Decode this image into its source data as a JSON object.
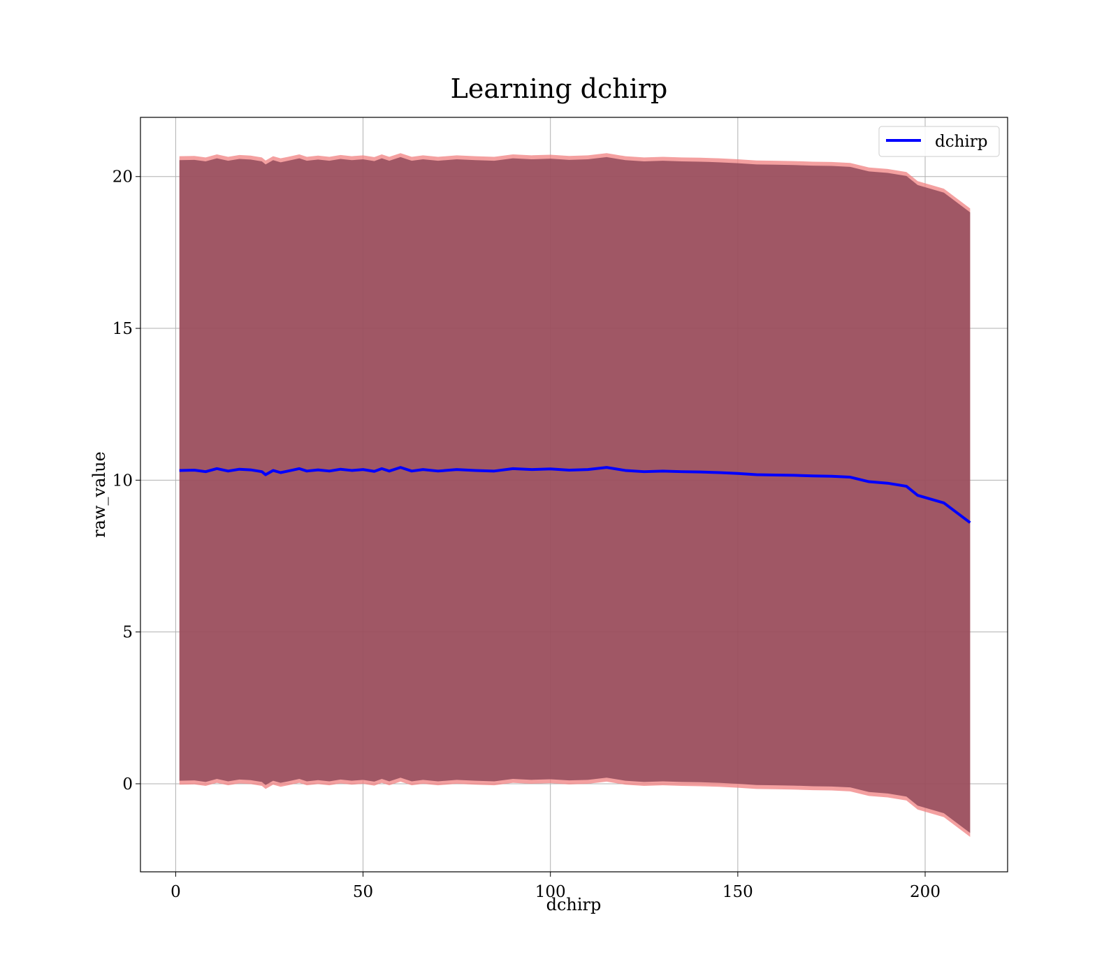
{
  "chart_data": {
    "type": "area",
    "title": "Learning dchirp",
    "xlabel": "dchirp",
    "ylabel": "raw_value",
    "xlim": [
      -9.4,
      222
    ],
    "ylim": [
      -2.9,
      21.95
    ],
    "xticks": [
      0,
      50,
      100,
      150,
      200
    ],
    "yticks": [
      0,
      5,
      10,
      15,
      20
    ],
    "grid": true,
    "legend_position": "top-right",
    "series": [
      {
        "name": "dchirp",
        "color": "#0000ff",
        "x": [
          1,
          5,
          8,
          11,
          14,
          17,
          20,
          23,
          24,
          26,
          28,
          30,
          33,
          35,
          38,
          41,
          44,
          47,
          50,
          53,
          55,
          57,
          60,
          63,
          66,
          70,
          75,
          80,
          85,
          90,
          95,
          100,
          105,
          110,
          115,
          120,
          125,
          130,
          135,
          140,
          145,
          150,
          155,
          160,
          165,
          170,
          175,
          180,
          185,
          190,
          195,
          198,
          205,
          212
        ],
        "values": [
          10.32,
          10.33,
          10.28,
          10.38,
          10.3,
          10.36,
          10.34,
          10.28,
          10.18,
          10.32,
          10.25,
          10.3,
          10.38,
          10.3,
          10.34,
          10.3,
          10.36,
          10.32,
          10.35,
          10.29,
          10.38,
          10.3,
          10.42,
          10.3,
          10.35,
          10.3,
          10.35,
          10.32,
          10.3,
          10.38,
          10.35,
          10.37,
          10.33,
          10.35,
          10.42,
          10.32,
          10.28,
          10.3,
          10.28,
          10.27,
          10.25,
          10.22,
          10.18,
          10.17,
          10.16,
          10.14,
          10.13,
          10.1,
          9.95,
          9.9,
          9.8,
          9.5,
          9.25,
          8.6
        ]
      }
    ],
    "band": {
      "color": "#8b4556",
      "edge_color": "#f08080",
      "offset_outer": 10.35,
      "offset_inner": 10.22
    }
  }
}
